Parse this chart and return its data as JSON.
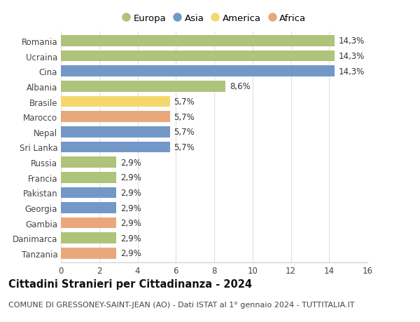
{
  "categories": [
    "Romania",
    "Ucraina",
    "Cina",
    "Albania",
    "Brasile",
    "Marocco",
    "Nepal",
    "Sri Lanka",
    "Russia",
    "Francia",
    "Pakistan",
    "Georgia",
    "Gambia",
    "Danimarca",
    "Tanzania"
  ],
  "values": [
    14.3,
    14.3,
    14.3,
    8.6,
    5.7,
    5.7,
    5.7,
    5.7,
    2.9,
    2.9,
    2.9,
    2.9,
    2.9,
    2.9,
    2.9
  ],
  "labels": [
    "14,3%",
    "14,3%",
    "14,3%",
    "8,6%",
    "5,7%",
    "5,7%",
    "5,7%",
    "5,7%",
    "2,9%",
    "2,9%",
    "2,9%",
    "2,9%",
    "2,9%",
    "2,9%",
    "2,9%"
  ],
  "continents": [
    "Europa",
    "Europa",
    "Asia",
    "Europa",
    "America",
    "Africa",
    "Asia",
    "Asia",
    "Europa",
    "Europa",
    "Asia",
    "Asia",
    "Africa",
    "Europa",
    "Africa"
  ],
  "colors": {
    "Europa": "#adc47a",
    "Asia": "#7398c8",
    "America": "#f5d76e",
    "Africa": "#e8a87c"
  },
  "legend_order": [
    "Europa",
    "Asia",
    "America",
    "Africa"
  ],
  "xlim": [
    0,
    16
  ],
  "xticks": [
    0,
    2,
    4,
    6,
    8,
    10,
    12,
    14,
    16
  ],
  "title": "Cittadini Stranieri per Cittadinanza - 2024",
  "subtitle": "COMUNE DI GRESSONEY-SAINT-JEAN (AO) - Dati ISTAT al 1° gennaio 2024 - TUTTITALIA.IT",
  "bg_color": "#ffffff",
  "grid_color": "#e0e0e0",
  "bar_height": 0.72,
  "label_fontsize": 8.5,
  "title_fontsize": 10.5,
  "subtitle_fontsize": 8,
  "tick_fontsize": 8.5,
  "legend_fontsize": 9.5
}
